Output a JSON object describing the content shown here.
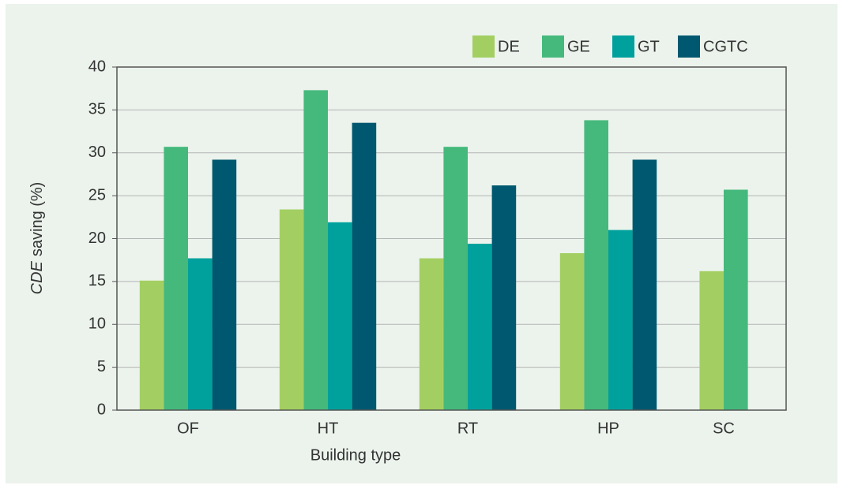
{
  "chart_data": {
    "type": "bar",
    "ylabel_parts": [
      "CDE",
      "saving (%)"
    ],
    "xlabel": "Building type",
    "categories": [
      "OF",
      "HT",
      "RT",
      "HP",
      "SC"
    ],
    "series": [
      {
        "name": "DE",
        "color": "#a3cf62",
        "values": [
          15.1,
          23.4,
          17.7,
          18.3,
          16.2
        ]
      },
      {
        "name": "GE",
        "color": "#45b97c",
        "values": [
          30.7,
          37.3,
          30.7,
          33.8,
          25.7
        ]
      },
      {
        "name": "GT",
        "color": "#00a19d",
        "values": [
          17.7,
          21.9,
          19.4,
          21.0,
          null
        ]
      },
      {
        "name": "CGTC",
        "color": "#005870",
        "values": [
          29.2,
          33.5,
          26.2,
          29.2,
          null
        ]
      }
    ],
    "ylim": [
      0,
      40
    ],
    "yticks": [
      0,
      5,
      10,
      15,
      20,
      25,
      30,
      35,
      40
    ],
    "grid": true,
    "legend": "top-right"
  }
}
